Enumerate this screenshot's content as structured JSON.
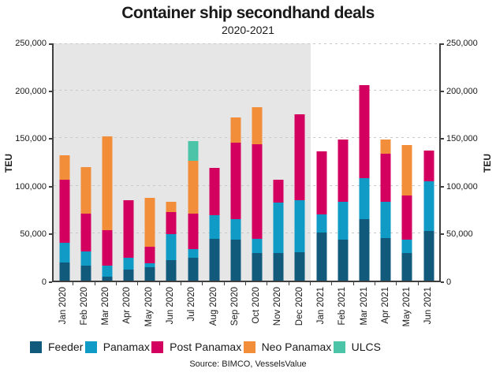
{
  "title": "Container ship secondhand deals",
  "subtitle": "2020-2021",
  "source": "Source: BIMCO, VesselsValue",
  "y_axis": {
    "label": "TEU",
    "label_right": "TEU"
  },
  "chart_data": {
    "type": "bar",
    "stacked": true,
    "title": "Container ship secondhand deals",
    "subtitle": "2020-2021",
    "ylabel": "TEU",
    "ylabel_right": "TEU",
    "ylim": [
      0,
      250000
    ],
    "grid": "horizontal-dashed",
    "legend_position": "bottom",
    "categories": [
      "Jan 2020",
      "Feb 2020",
      "Mar 2020",
      "Apr 2020",
      "May 2020",
      "Jun 2020",
      "Jul 2020",
      "Aug 2020",
      "Sep 2020",
      "Oct 2020",
      "Nov 2020",
      "Dec 2020",
      "Jan 2021",
      "Feb 2021",
      "Mar 2021",
      "Apr 2021",
      "May 2021",
      "Jun 2021"
    ],
    "yticks": [
      {
        "value": 0,
        "label": "0"
      },
      {
        "value": 50000,
        "label": "50,000"
      },
      {
        "value": 100000,
        "label": "100,000"
      },
      {
        "value": 150000,
        "label": "150,000"
      },
      {
        "value": 200000,
        "label": "200,000"
      },
      {
        "value": 250000,
        "label": "250,000"
      }
    ],
    "series": [
      {
        "name": "Feeder",
        "color": "#115a7c",
        "values": [
          19000,
          16000,
          4000,
          12000,
          14000,
          22000,
          24000,
          44000,
          43000,
          29000,
          29000,
          30000,
          51000,
          43000,
          65000,
          45000,
          29000,
          52000
        ]
      },
      {
        "name": "Panamax",
        "color": "#0f9bc6",
        "values": [
          21000,
          15000,
          12000,
          12000,
          4000,
          27000,
          9000,
          25000,
          22000,
          15000,
          53000,
          55000,
          19000,
          40000,
          43000,
          38000,
          14000,
          53000
        ]
      },
      {
        "name": "Post Panamax",
        "color": "#d4005f",
        "values": [
          66000,
          40000,
          37000,
          61000,
          18000,
          23000,
          38000,
          50000,
          80000,
          100000,
          24000,
          90000,
          66000,
          66000,
          98000,
          51000,
          47000,
          32000
        ]
      },
      {
        "name": "Neo Panamax",
        "color": "#f28d3a",
        "values": [
          26000,
          49000,
          99000,
          0,
          51000,
          11000,
          55000,
          0,
          27000,
          39000,
          0,
          0,
          0,
          0,
          0,
          15000,
          53000,
          0
        ]
      },
      {
        "name": "ULCS",
        "color": "#4cc4a8",
        "values": [
          0,
          0,
          0,
          0,
          0,
          0,
          21000,
          0,
          0,
          0,
          0,
          0,
          0,
          0,
          0,
          0,
          0,
          0
        ]
      }
    ],
    "shaded_region": {
      "from_category": "Jan 2020",
      "to_category": "Dec 2020",
      "color": "#e6e6e6"
    }
  }
}
